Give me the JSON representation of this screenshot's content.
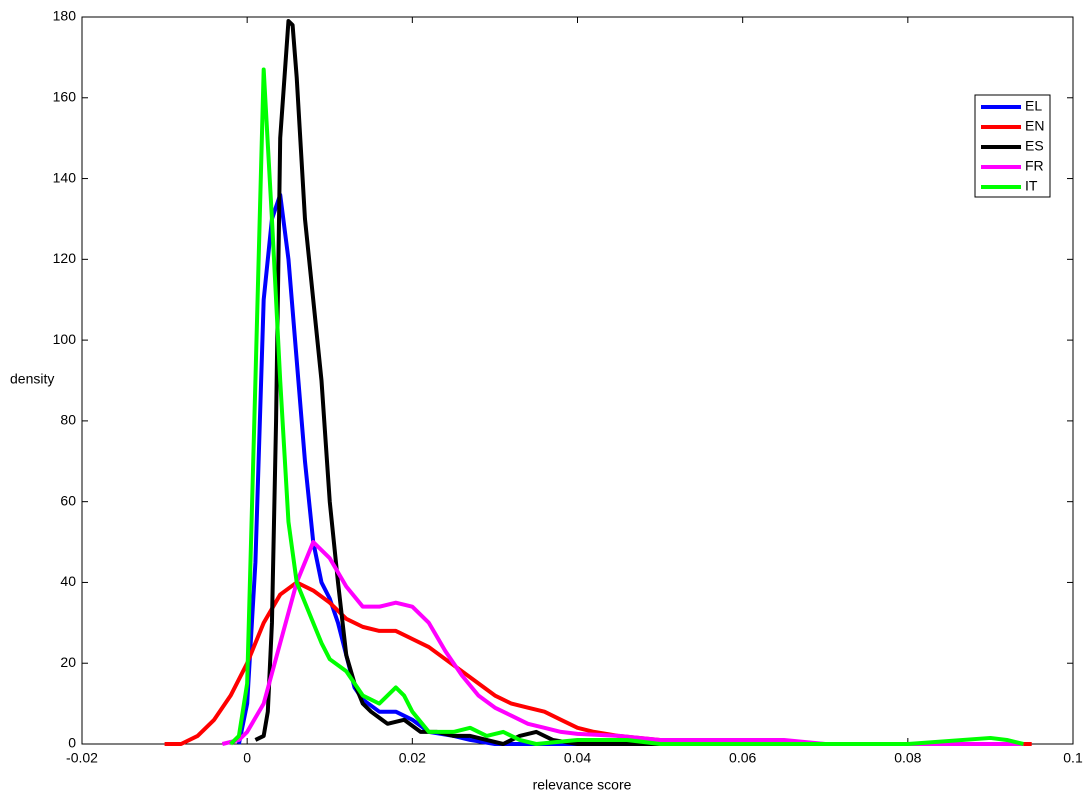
{
  "chart_data": {
    "type": "line",
    "x_label": "relevance score",
    "y_label": "density",
    "xlim": [
      -0.02,
      0.1
    ],
    "xticks": [
      -0.02,
      0,
      0.02,
      0.04,
      0.06,
      0.08,
      0.1
    ],
    "ylim": [
      0,
      180
    ],
    "yticks": [
      0,
      20,
      40,
      60,
      80,
      100,
      120,
      140,
      160,
      180
    ],
    "legend": "upper right",
    "series": [
      {
        "name": "EL",
        "color": "#0000ff",
        "x": [
          -0.001,
          0,
          0.001,
          0.002,
          0.003,
          0.004,
          0.005,
          0.006,
          0.007,
          0.008,
          0.009,
          0.01,
          0.011,
          0.012,
          0.013,
          0.014,
          0.016,
          0.018,
          0.02,
          0.022,
          0.025,
          0.027,
          0.03,
          0.035,
          0.04,
          0.045,
          0.046,
          0.047,
          0.05,
          0.06,
          0.07,
          0.08,
          0.09
        ],
        "values": [
          0,
          10,
          45,
          110,
          130,
          136,
          120,
          95,
          70,
          50,
          40,
          36,
          30,
          22,
          14,
          11,
          8,
          8,
          6,
          3,
          2,
          1,
          0,
          0,
          0,
          0,
          1,
          0,
          0,
          0,
          0,
          0,
          0
        ]
      },
      {
        "name": "EN",
        "color": "#ff0000",
        "x": [
          -0.01,
          -0.008,
          -0.006,
          -0.004,
          -0.002,
          0,
          0.002,
          0.004,
          0.006,
          0.008,
          0.01,
          0.012,
          0.014,
          0.016,
          0.018,
          0.02,
          0.022,
          0.024,
          0.026,
          0.028,
          0.03,
          0.032,
          0.034,
          0.036,
          0.038,
          0.04,
          0.042,
          0.045,
          0.05,
          0.055,
          0.06,
          0.07,
          0.08,
          0.09,
          0.095
        ],
        "values": [
          0,
          0,
          2,
          6,
          12,
          20,
          30,
          37,
          40,
          38,
          35,
          31,
          29,
          28,
          28,
          26,
          24,
          21,
          18,
          15,
          12,
          10,
          9,
          8,
          6,
          4,
          3,
          2,
          1,
          1,
          0.5,
          0,
          0,
          0,
          0
        ]
      },
      {
        "name": "ES",
        "color": "#000000",
        "x": [
          0.001,
          0.002,
          0.0025,
          0.003,
          0.0035,
          0.004,
          0.005,
          0.0055,
          0.006,
          0.007,
          0.008,
          0.009,
          0.01,
          0.011,
          0.012,
          0.013,
          0.014,
          0.015,
          0.017,
          0.019,
          0.021,
          0.023,
          0.025,
          0.027,
          0.029,
          0.031,
          0.033,
          0.035,
          0.037,
          0.04,
          0.05,
          0.06,
          0.07,
          0.08,
          0.09
        ],
        "values": [
          1,
          2,
          8,
          30,
          80,
          150,
          179,
          178,
          165,
          130,
          110,
          90,
          60,
          40,
          22,
          15,
          10,
          8,
          5,
          6,
          3,
          3,
          2,
          2,
          1,
          0,
          2,
          3,
          1,
          0,
          0,
          0,
          0,
          0,
          0
        ]
      },
      {
        "name": "FR",
        "color": "#ff00ff",
        "x": [
          -0.003,
          -0.001,
          0,
          0.002,
          0.004,
          0.006,
          0.008,
          0.01,
          0.012,
          0.014,
          0.016,
          0.018,
          0.02,
          0.022,
          0.024,
          0.026,
          0.028,
          0.03,
          0.032,
          0.034,
          0.036,
          0.038,
          0.04,
          0.045,
          0.05,
          0.06,
          0.065,
          0.07,
          0.08,
          0.09,
          0.094
        ],
        "values": [
          0,
          1,
          3,
          10,
          25,
          40,
          50,
          46,
          39,
          34,
          34,
          35,
          34,
          30,
          23,
          17,
          12,
          9,
          7,
          5,
          4,
          3,
          2.5,
          2,
          1,
          1,
          1,
          0,
          0,
          0,
          0
        ]
      },
      {
        "name": "IT",
        "color": "#00ff00",
        "x": [
          -0.002,
          -0.001,
          0,
          0.001,
          0.002,
          0.003,
          0.004,
          0.005,
          0.006,
          0.007,
          0.008,
          0.009,
          0.01,
          0.012,
          0.014,
          0.016,
          0.018,
          0.019,
          0.02,
          0.022,
          0.025,
          0.027,
          0.029,
          0.031,
          0.033,
          0.035,
          0.04,
          0.046,
          0.05,
          0.06,
          0.07,
          0.08,
          0.09,
          0.092,
          0.094
        ],
        "values": [
          0,
          2,
          15,
          90,
          167,
          130,
          90,
          55,
          40,
          35,
          30,
          25,
          21,
          18,
          12,
          10,
          14,
          12,
          8,
          3,
          3,
          4,
          2,
          3,
          1,
          0,
          1,
          1,
          0,
          0,
          0,
          0,
          1.5,
          1,
          0
        ]
      }
    ]
  }
}
